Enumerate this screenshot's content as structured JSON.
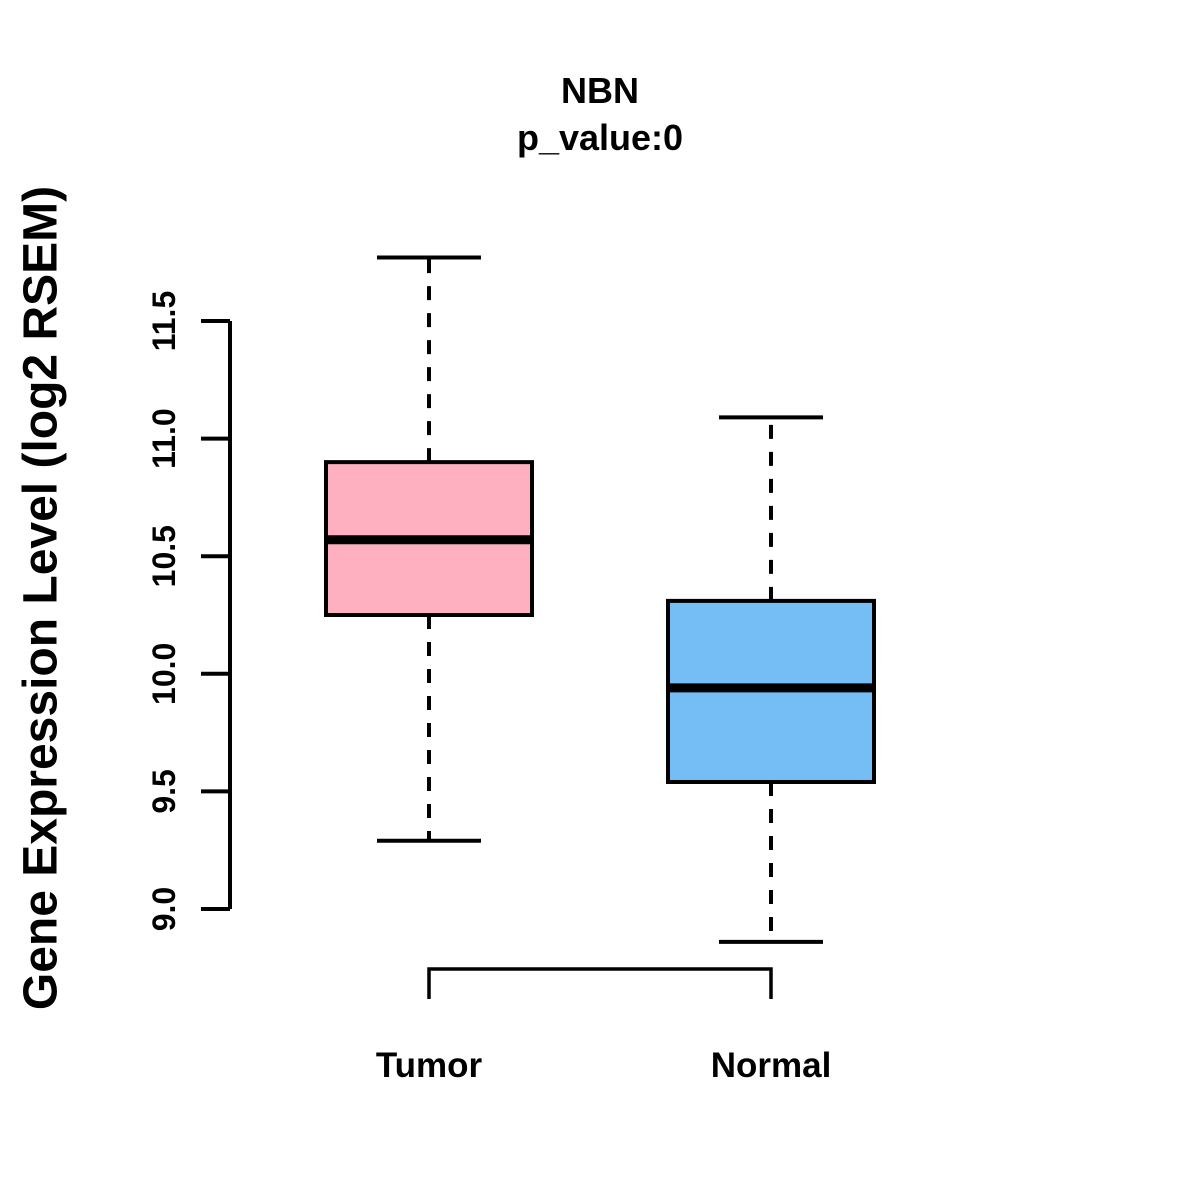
{
  "title": {
    "main": "NBN",
    "subtitle": "p_value:0"
  },
  "y_axis_label": "Gene Expression Level (log2 RSEM)",
  "colors": {
    "tumor_box_fill": "#FFB0C0",
    "normal_box_fill": "#74BDF5",
    "line_color": "#000000",
    "background": "#FFFFFF"
  },
  "chart_data": {
    "type": "boxplot",
    "title": "NBN",
    "subtitle": "p_value:0",
    "ylabel": "Gene Expression Level (log2 RSEM)",
    "xlabel": "",
    "categories": [
      "Tumor",
      "Normal"
    ],
    "series": [
      {
        "name": "Tumor",
        "color": "#FFB0C0",
        "whisker_low": 9.29,
        "q1": 10.25,
        "median": 10.57,
        "q3": 10.9,
        "whisker_high": 11.77
      },
      {
        "name": "Normal",
        "color": "#74BDF5",
        "whisker_low": 8.86,
        "q1": 9.54,
        "median": 9.94,
        "q3": 10.31,
        "whisker_high": 11.09
      }
    ],
    "y_ticks": [
      9.0,
      9.5,
      10.0,
      10.5,
      11.0,
      11.5
    ],
    "y_tick_labels": [
      "9.0",
      "9.5",
      "10.0",
      "10.5",
      "11.0",
      "11.5"
    ],
    "ylim": [
      9.0,
      11.5
    ],
    "grid": false,
    "legend": "none",
    "whisker_style": "dashed",
    "comparison_bracket": {
      "from": "Tumor",
      "to": "Normal"
    }
  }
}
